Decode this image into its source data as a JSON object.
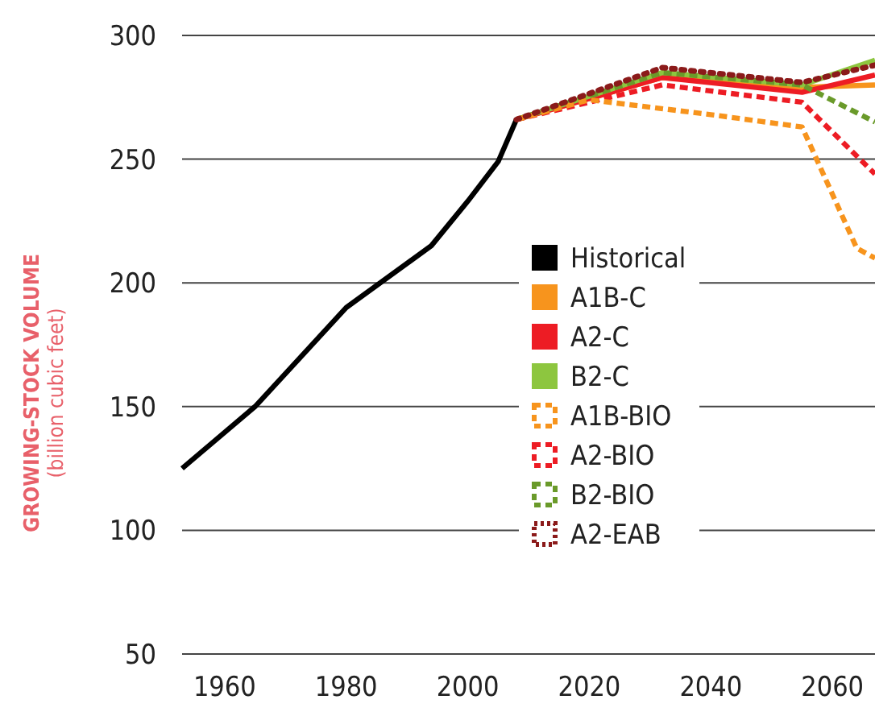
{
  "chart_data": {
    "type": "line",
    "ylabel": "GROWING-STOCK VOLUME\n(billion cubic feet)",
    "xlim": [
      1953,
      2067
    ],
    "ylim": [
      50,
      300
    ],
    "xticks": [
      1960,
      1980,
      2000,
      2020,
      2040,
      2060
    ],
    "yticks": [
      50,
      100,
      150,
      200,
      250,
      300
    ],
    "grid": "y",
    "legend": "center",
    "series": [
      {
        "name": "Historical",
        "color": "#000000",
        "line_style": "solid",
        "x": [
          1953,
          1965,
          1980,
          1994,
          2000,
          2005,
          2008
        ],
        "values": [
          125,
          150,
          190,
          215,
          233,
          249,
          266
        ]
      },
      {
        "name": "A1B-C",
        "color": "#f7941d",
        "line_style": "solid",
        "x": [
          2008,
          2032,
          2055,
          2067
        ],
        "values": [
          266,
          283,
          279,
          280
        ]
      },
      {
        "name": "A2-C",
        "color": "#ed1c24",
        "line_style": "solid",
        "x": [
          2008,
          2032,
          2055,
          2067
        ],
        "values": [
          266,
          283,
          277,
          284
        ]
      },
      {
        "name": "B2-C",
        "color": "#8dc63f",
        "line_style": "solid",
        "x": [
          2008,
          2032,
          2055,
          2067
        ],
        "values": [
          266,
          285,
          280,
          290
        ]
      },
      {
        "name": "A1B-BIO",
        "color": "#f7941d",
        "line_style": "dashed",
        "x": [
          2008,
          2020,
          2040,
          2055,
          2064,
          2067
        ],
        "values": [
          266,
          274,
          268,
          263,
          214,
          210
        ]
      },
      {
        "name": "A2-BIO",
        "color": "#ed1c24",
        "line_style": "dashed",
        "x": [
          2008,
          2032,
          2055,
          2067
        ],
        "values": [
          266,
          280,
          273,
          244
        ]
      },
      {
        "name": "B2-BIO",
        "color": "#6a9a2a",
        "line_style": "dashed",
        "x": [
          2008,
          2032,
          2055,
          2067
        ],
        "values": [
          266,
          285,
          280,
          265
        ]
      },
      {
        "name": "A2-EAB",
        "color": "#8b1a1a",
        "line_style": "dotted",
        "x": [
          2008,
          2032,
          2055,
          2067
        ],
        "values": [
          266,
          287,
          281,
          288
        ]
      }
    ]
  }
}
